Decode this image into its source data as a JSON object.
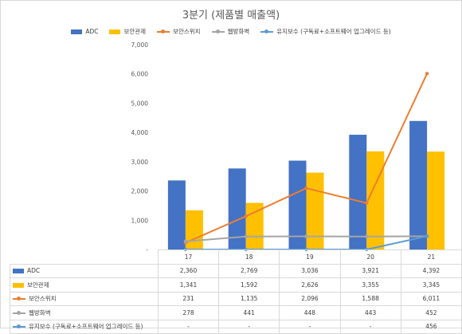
{
  "chart_data": {
    "type": "bar",
    "title": "3분기 (제품별 매출액)",
    "categories": [
      "17",
      "18",
      "19",
      "20",
      "21"
    ],
    "ylim": [
      0,
      7000
    ],
    "yticks": [
      "-",
      "1,000",
      "2,000",
      "3,000",
      "4,000",
      "5,000",
      "6,000",
      "7,000"
    ],
    "grid": false,
    "legend_position": "top",
    "series": [
      {
        "name": "ADC",
        "kind": "bar",
        "color": "#4472c4",
        "values": [
          2360,
          2769,
          3036,
          3921,
          4392
        ],
        "labels": [
          "2,360",
          "2,769",
          "3,036",
          "3,921",
          "4,392"
        ]
      },
      {
        "name": "보안관제",
        "kind": "bar",
        "color": "#ffc000",
        "values": [
          1341,
          1592,
          2626,
          3355,
          3345
        ],
        "labels": [
          "1,341",
          "1,592",
          "2,626",
          "3,355",
          "3,345"
        ]
      },
      {
        "name": "보안스위치",
        "kind": "line",
        "color": "#ed7d31",
        "values": [
          231,
          1135,
          2096,
          1588,
          6011
        ],
        "labels": [
          "231",
          "1,135",
          "2,096",
          "1,588",
          "6,011"
        ]
      },
      {
        "name": "웹방화벽",
        "kind": "line",
        "color": "#a5a5a5",
        "values": [
          278,
          441,
          448,
          443,
          452
        ],
        "labels": [
          "278",
          "441",
          "448",
          "443",
          "452"
        ]
      },
      {
        "name": "유지보수 (구독료+소프트웨어 업그레이드 등)",
        "kind": "line",
        "color": "#5b9bd5",
        "values": [
          0,
          0,
          0,
          0,
          456
        ],
        "labels": [
          "-",
          "-",
          "-",
          "-",
          "456"
        ]
      }
    ]
  }
}
